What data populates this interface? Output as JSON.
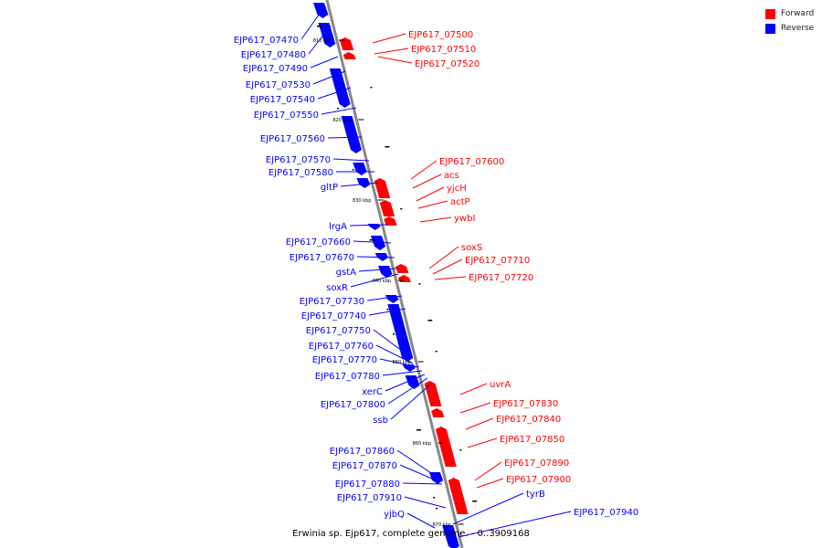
{
  "footer": "Erwinia sp. Ejp617, complete genome. - 0..3909168",
  "legend": [
    {
      "label": "Forward",
      "color": "#ff0000"
    },
    {
      "label": "Reverse",
      "color": "#0000ff"
    }
  ],
  "colors": {
    "forward": "#ff0000",
    "reverse": "#0000ff",
    "backbone": "#888888"
  },
  "ticks": [
    "810 kbp",
    "820 kbp",
    "830 kbp",
    "840 kbp",
    "850 kbp",
    "860 kbp",
    "870 kbp"
  ],
  "forward_genes": [
    "EJP617_07500",
    "EJP617_07510",
    "EJP617_07520",
    "EJP617_07600",
    "acs",
    "yjcH",
    "actP",
    "ywbI",
    "soxS",
    "EJP617_07710",
    "EJP617_07720",
    "uvrA",
    "EJP617_07830",
    "EJP617_07840",
    "EJP617_07850",
    "EJP617_07890",
    "EJP617_07900"
  ],
  "reverse_genes": [
    "EJP617_07470",
    "EJP617_07480",
    "EJP617_07490",
    "EJP617_07530",
    "EJP617_07540",
    "EJP617_07550",
    "EJP617_07560",
    "EJP617_07570",
    "EJP617_07580",
    "gltP",
    "lrgA",
    "EJP617_07660",
    "EJP617_07670",
    "gstA",
    "soxR",
    "EJP617_07730",
    "EJP617_07740",
    "EJP617_07750",
    "EJP617_07760",
    "EJP617_07770",
    "EJP617_07780",
    "xerC",
    "EJP617_07800",
    "ssb",
    "EJP617_07860",
    "EJP617_07870",
    "EJP617_07880",
    "EJP617_07910",
    "yjbQ",
    "tyrB",
    "EJP617_07940"
  ]
}
